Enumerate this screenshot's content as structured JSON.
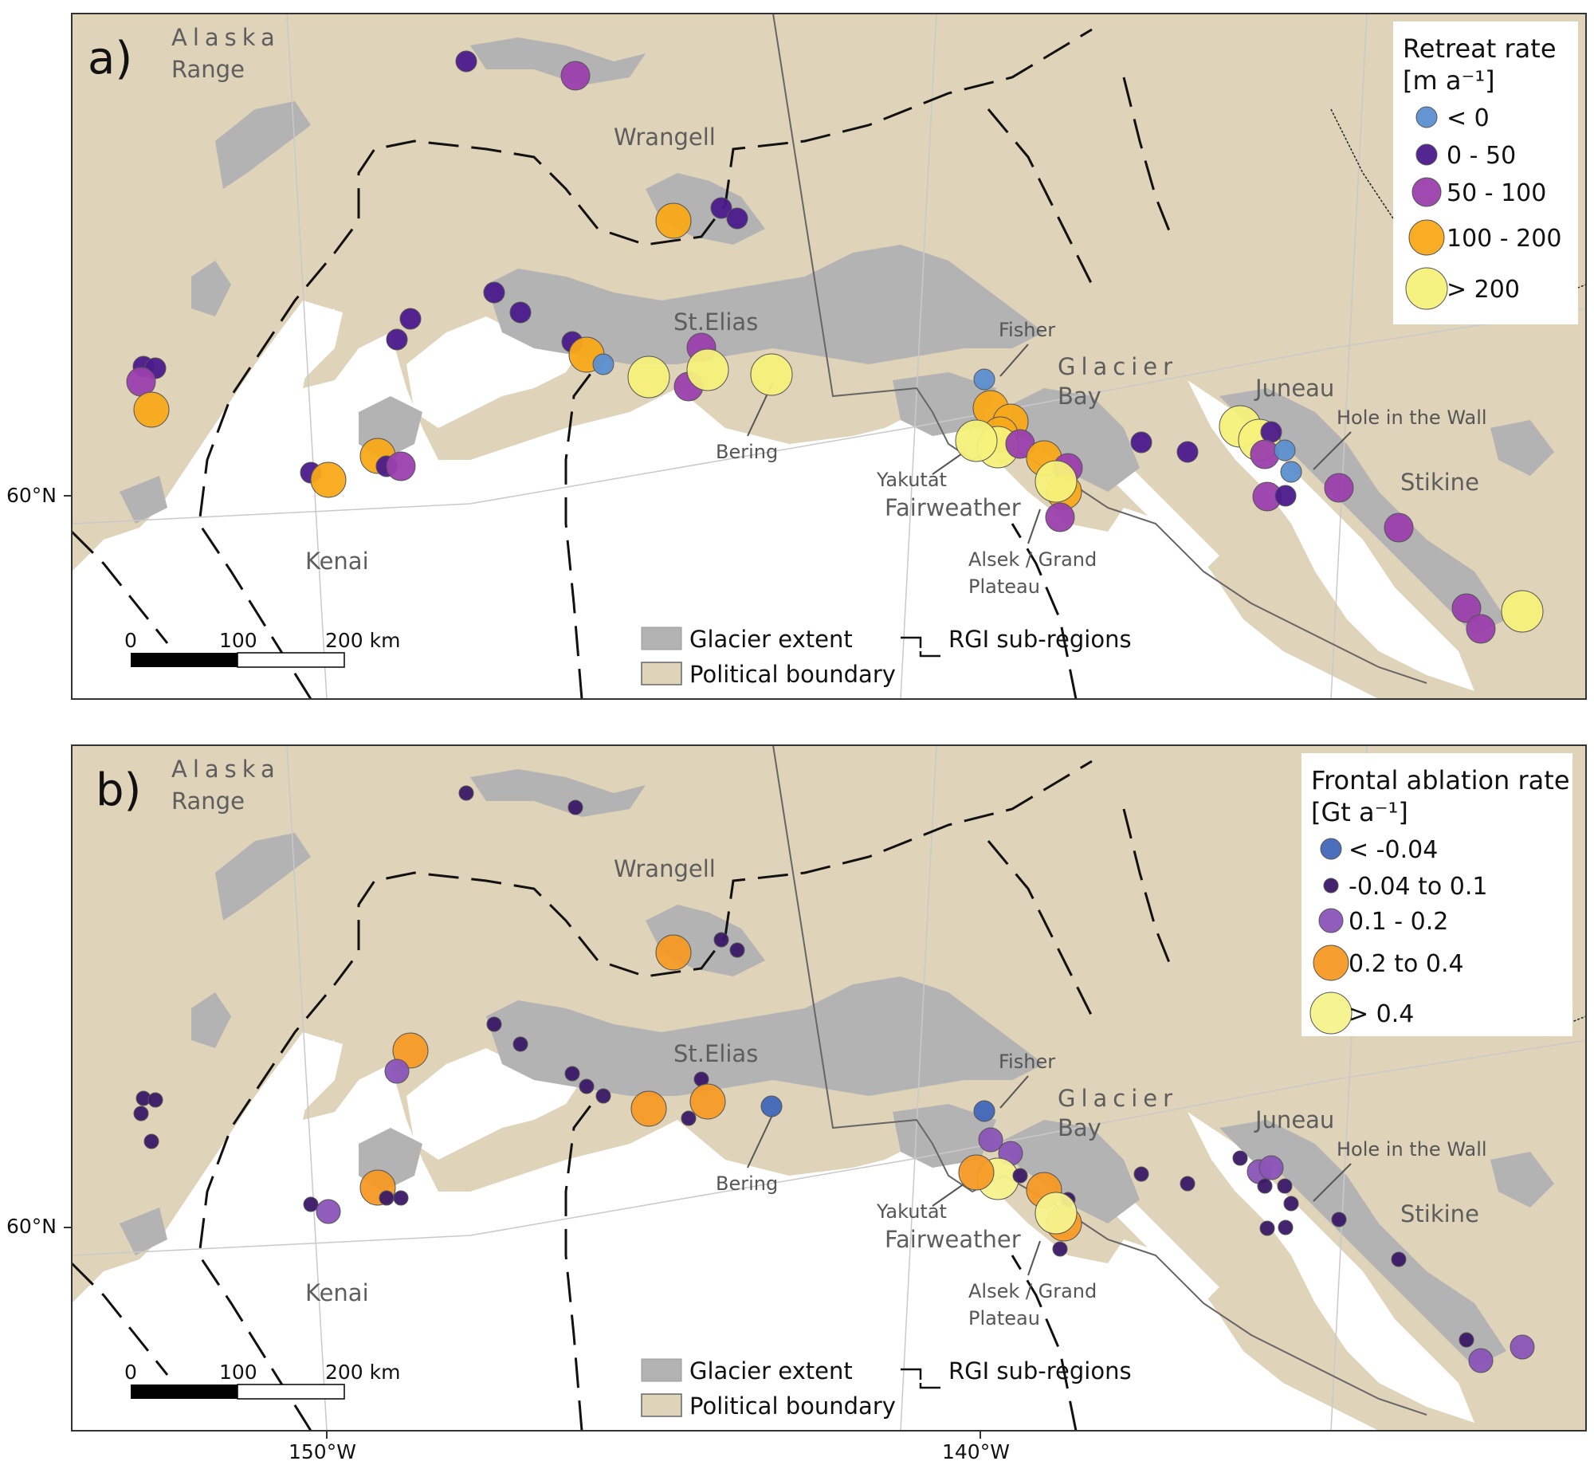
{
  "colors": {
    "land": "#dfd3b9",
    "ocean": "#ffffff",
    "glacier": "#b3b3b3",
    "lt0": "#5b8fd0",
    "c0_50": "#4b1a8c",
    "c50_100": "#9a3fad",
    "c100_200": "#f8a919",
    "gt200": "#f5f17a",
    "fa_lt": "#4167b8",
    "fa_small": "#3a1867",
    "fa_mid": "#8a54b8",
    "fa_orange": "#f59a25",
    "fa_yellow": "#f5f38c"
  },
  "panels": [
    {
      "letter": "a)",
      "legend": {
        "title_line1": "Retreat rate",
        "title_line2": "[m a⁻¹]",
        "items": [
          {
            "label": "< 0",
            "class": "lt0"
          },
          {
            "label": "0 - 50",
            "class": "c0_50"
          },
          {
            "label": "50 - 100",
            "class": "c50_100"
          },
          {
            "label": "100 - 200",
            "class": "c100_200"
          },
          {
            "label": "> 200",
            "class": "gt200"
          }
        ]
      }
    },
    {
      "letter": "b)",
      "legend": {
        "title_line1": "Frontal ablation rate",
        "title_line2": "[Gt a⁻¹]",
        "items": [
          {
            "label": "< -0.04",
            "class": "fa_lt"
          },
          {
            "label": "-0.04 to 0.1",
            "class": "fa_small"
          },
          {
            "label": "0.1 - 0.2",
            "class": "fa_mid"
          },
          {
            "label": "0.2 to 0.4",
            "class": "fa_orange"
          },
          {
            "label": "> 0.4",
            "class": "fa_yellow"
          }
        ]
      }
    }
  ],
  "regions": {
    "alaska_range_1": "Alaska",
    "alaska_range_2": "Range",
    "wrangell": "Wrangell",
    "st_elias": "St.Elias",
    "glacier_bay_1": "Glacier",
    "glacier_bay_2": "Bay",
    "juneau": "Juneau",
    "stikine": "Stikine",
    "kenai": "Kenai",
    "fairweather": "Fairweather"
  },
  "glaciers": {
    "fisher": "Fisher",
    "bering": "Bering",
    "yakutat": "Yakutat",
    "hole_in_the_wall": "Hole in the Wall",
    "alsek_1": "Alsek / Grand",
    "alsek_2": "Plateau"
  },
  "key": {
    "glacier_extent": "Glacier extent",
    "political_boundary": "Political boundary",
    "rgi_subregions": "RGI sub-regions"
  },
  "scale": {
    "s0": "0",
    "s100": "100",
    "s200": "200 km"
  },
  "axes": {
    "lat60": "60°N",
    "lon150": "150°W",
    "lon140": "140°W"
  }
}
